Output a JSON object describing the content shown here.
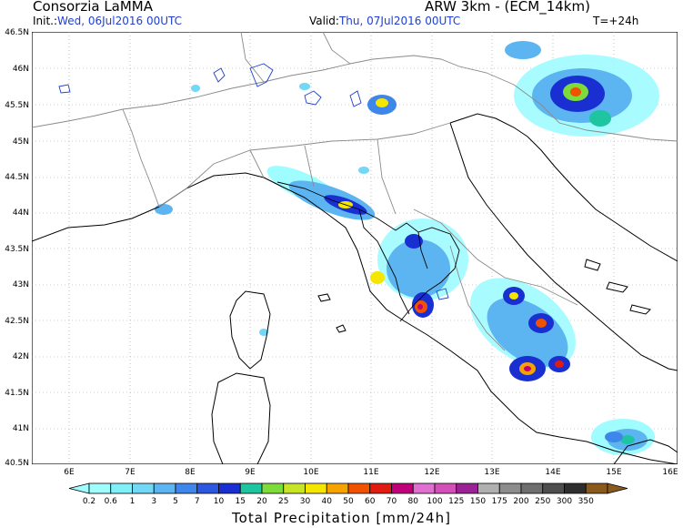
{
  "header": {
    "title": "Consorzia LaMMA",
    "model": "ARW 3km  - (ECM_14km)",
    "init_label": "Init.:",
    "init_value": "Wed, 06Jul2016 00UTC",
    "valid_label": "Valid:",
    "valid_value": "Thu, 07Jul2016 00UTC",
    "forecast_step": "T=+24h"
  },
  "map": {
    "lat_labels": [
      "46.5N",
      "46N",
      "45.5N",
      "45N",
      "44.5N",
      "44N",
      "43.5N",
      "43N",
      "42.5N",
      "42N",
      "41.5N",
      "41N",
      "40.5N"
    ],
    "lon_labels": [
      "6E",
      "7E",
      "8E",
      "9E",
      "10E",
      "11E",
      "12E",
      "13E",
      "14E",
      "15E",
      "16E"
    ],
    "lat_range": [
      40.5,
      46.5
    ],
    "lon_range": [
      5.5,
      16
    ]
  },
  "legend": {
    "title": "Total Precipitation [mm/24h]",
    "values": [
      "0.2",
      "0.6",
      "1",
      "3",
      "5",
      "7",
      "10",
      "15",
      "20",
      "25",
      "30",
      "40",
      "50",
      "60",
      "70",
      "80",
      "100",
      "125",
      "150",
      "175",
      "200",
      "250",
      "300",
      "350"
    ],
    "colors": [
      "#9ffcff",
      "#7ff0f7",
      "#72d8f5",
      "#5cb5f0",
      "#3f86ea",
      "#2d57e0",
      "#1a2fd2",
      "#1fc4a0",
      "#7ddc3a",
      "#c7e426",
      "#f5e600",
      "#f6a300",
      "#f05200",
      "#e01b10",
      "#c0007a",
      "#e070d0",
      "#d350b8",
      "#9a2294",
      "#b0b0b0",
      "#8c8c8c",
      "#6e6e6e",
      "#4e4e4e",
      "#2e2e2e",
      "#8a5a1c"
    ]
  }
}
